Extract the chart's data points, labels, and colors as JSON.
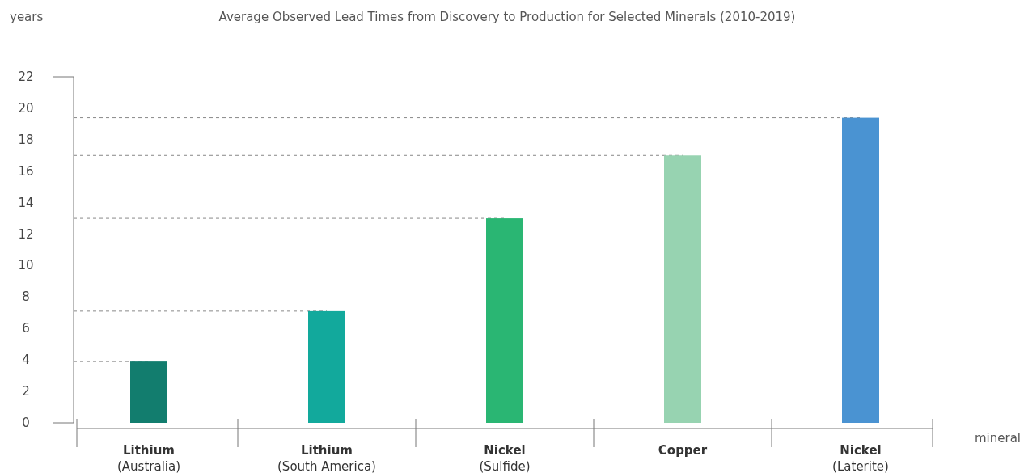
{
  "chart_data": {
    "type": "bar",
    "title": "Average Observed Lead Times from Discovery to Production for Selected Minerals (2010-2019)",
    "ylabel": "years",
    "annotations": [
      "mineral"
    ],
    "categories": [
      "Lithium\n(Australia)",
      "Lithium\n(South America)",
      "Nickel\n(Sulfide)",
      "Copper",
      "Nickel\n(Laterite)"
    ],
    "values": [
      3.9,
      7.1,
      13,
      17,
      19.4
    ],
    "colors": [
      "#127d6e",
      "#12a99c",
      "#2ab673",
      "#97d3b1",
      "#4a93d2"
    ],
    "ylim": [
      0,
      22
    ],
    "yticks": [
      0,
      2,
      4,
      6,
      8,
      10,
      12,
      14,
      16,
      18,
      20,
      22
    ],
    "grid": false,
    "ref_lines": [
      {
        "axis": "y",
        "value": 3.9,
        "line_style": "dashed",
        "color": "#888888"
      },
      {
        "axis": "y",
        "value": 7.1,
        "line_style": "dashed",
        "color": "#888888"
      },
      {
        "axis": "y",
        "value": 13,
        "line_style": "dashed",
        "color": "#888888"
      },
      {
        "axis": "y",
        "value": 17,
        "line_style": "dashed",
        "color": "#888888"
      },
      {
        "axis": "y",
        "value": 19.4,
        "line_style": "dashed",
        "color": "#888888"
      }
    ]
  }
}
